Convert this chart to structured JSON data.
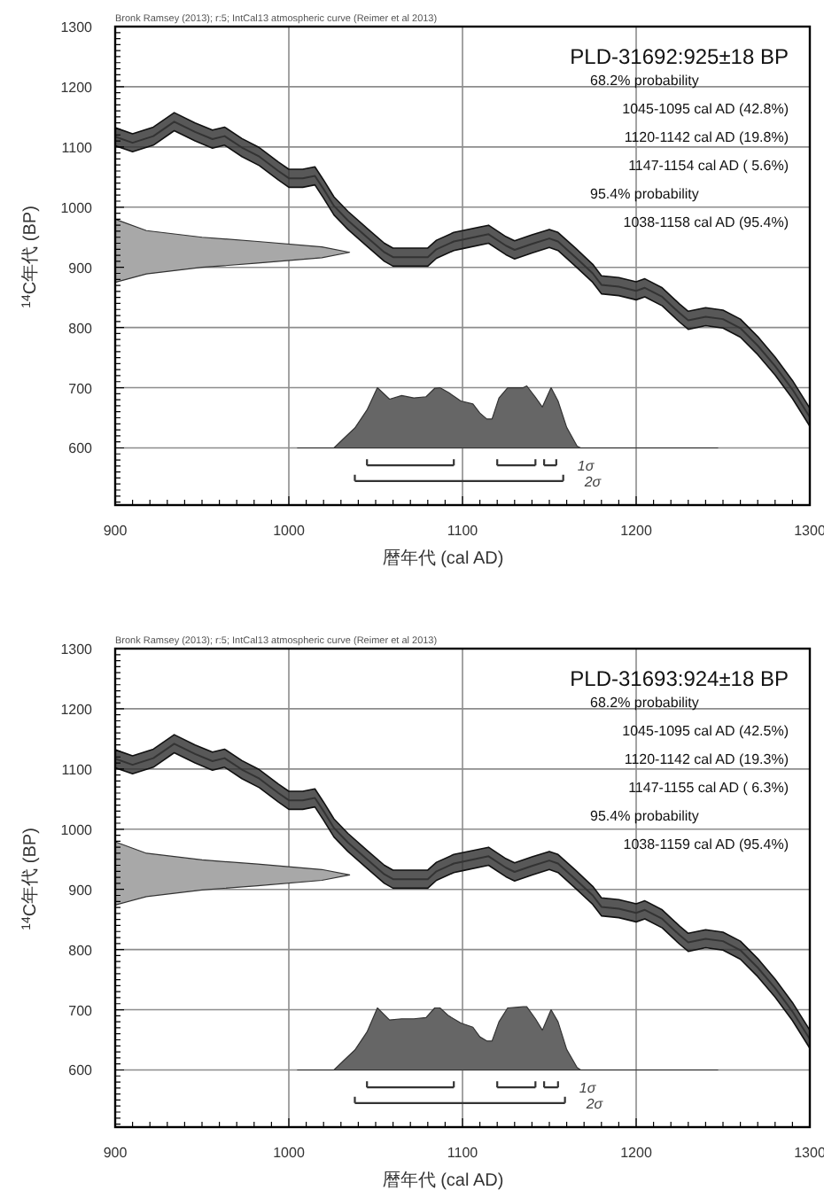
{
  "chart_data": [
    {
      "type": "line",
      "title": "PLD-31692:925±18 BP",
      "subtitle": "Bronk Ramsey (2013); r:5; IntCal13 atmospheric curve (Reimer et al 2013)",
      "xlabel": "暦年代 (cal AD)",
      "ylabel": "$^{14}$C年代 (BP)",
      "annotations": [
        "68.2% probability",
        "1045-1095 cal AD (42.8%)",
        "1120-1142 cal AD (19.8%)",
        "1147-1154 cal AD ( 5.6%)",
        "95.4% probability",
        "1038-1158 cal AD (95.4%)"
      ],
      "xlim": [
        900,
        1300
      ],
      "ylim": [
        505,
        1300
      ],
      "xticks": [
        900,
        {
          "value": 910,
          "label": null
        },
        {
          "value": 920,
          "label": null
        },
        {
          "value": 930,
          "label": null
        },
        {
          "value": 940,
          "label": null
        },
        {
          "value": 950,
          "label": null
        },
        {
          "value": 960,
          "label": null
        },
        {
          "value": 970,
          "label": null
        },
        {
          "value": 980,
          "label": null
        },
        {
          "value": 990,
          "label": null
        },
        1000,
        {
          "value": 1010,
          "label": null
        },
        {
          "value": 1020,
          "label": null
        },
        {
          "value": 1030,
          "label": null
        },
        {
          "value": 1040,
          "label": null
        },
        {
          "value": 1050,
          "label": null
        },
        {
          "value": 1060,
          "label": null
        },
        {
          "value": 1070,
          "label": null
        },
        {
          "value": 1080,
          "label": null
        },
        {
          "value": 1090,
          "label": null
        },
        1100,
        {
          "value": 1110,
          "label": null
        },
        {
          "value": 1120,
          "label": null
        },
        {
          "value": 1130,
          "label": null
        },
        {
          "value": 1140,
          "label": null
        },
        {
          "value": 1150,
          "label": null
        },
        {
          "value": 1160,
          "label": null
        },
        {
          "value": 1170,
          "label": null
        },
        {
          "value": 1180,
          "label": null
        },
        {
          "value": 1190,
          "label": null
        },
        1200,
        {
          "value": 1210,
          "label": null
        },
        {
          "value": 1220,
          "label": null
        },
        {
          "value": 1230,
          "label": null
        },
        {
          "value": 1240,
          "label": null
        },
        {
          "value": 1250,
          "label": null
        },
        {
          "value": 1260,
          "label": null
        },
        {
          "value": 1270,
          "label": null
        },
        {
          "value": 1280,
          "label": null
        },
        {
          "value": 1290,
          "label": null
        },
        1300
      ],
      "yticks": [
        {
          "value": 510,
          "label": null
        },
        {
          "value": 520,
          "label": null
        },
        {
          "value": 530,
          "label": null
        },
        {
          "value": 540,
          "label": null
        },
        {
          "value": 550,
          "label": null
        },
        {
          "value": 560,
          "label": null
        },
        {
          "value": 570,
          "label": null
        },
        {
          "value": 580,
          "label": null
        },
        {
          "value": 590,
          "label": null
        },
        600,
        {
          "value": 610,
          "label": null
        },
        {
          "value": 620,
          "label": null
        },
        {
          "value": 630,
          "label": null
        },
        {
          "value": 640,
          "label": null
        },
        {
          "value": 650,
          "label": null
        },
        {
          "value": 660,
          "label": null
        },
        {
          "value": 670,
          "label": null
        },
        {
          "value": 680,
          "label": null
        },
        {
          "value": 690,
          "label": null
        },
        700,
        {
          "value": 710,
          "label": null
        },
        {
          "value": 720,
          "label": null
        },
        {
          "value": 730,
          "label": null
        },
        {
          "value": 740,
          "label": null
        },
        {
          "value": 750,
          "label": null
        },
        {
          "value": 760,
          "label": null
        },
        {
          "value": 770,
          "label": null
        },
        {
          "value": 780,
          "label": null
        },
        {
          "value": 790,
          "label": null
        },
        800,
        {
          "value": 810,
          "label": null
        },
        {
          "value": 820,
          "label": null
        },
        {
          "value": 830,
          "label": null
        },
        {
          "value": 840,
          "label": null
        },
        {
          "value": 850,
          "label": null
        },
        {
          "value": 860,
          "label": null
        },
        {
          "value": 870,
          "label": null
        },
        {
          "value": 880,
          "label": null
        },
        {
          "value": 890,
          "label": null
        },
        900,
        {
          "value": 910,
          "label": null
        },
        {
          "value": 920,
          "label": null
        },
        {
          "value": 930,
          "label": null
        },
        {
          "value": 940,
          "label": null
        },
        {
          "value": 950,
          "label": null
        },
        {
          "value": 960,
          "label": null
        },
        {
          "value": 970,
          "label": null
        },
        {
          "value": 980,
          "label": null
        },
        {
          "value": 990,
          "label": null
        },
        1000,
        {
          "value": 1010,
          "label": null
        },
        {
          "value": 1020,
          "label": null
        },
        {
          "value": 1030,
          "label": null
        },
        {
          "value": 1040,
          "label": null
        },
        {
          "value": 1050,
          "label": null
        },
        {
          "value": 1060,
          "label": null
        },
        {
          "value": 1070,
          "label": null
        },
        {
          "value": 1080,
          "label": null
        },
        {
          "value": 1090,
          "label": null
        },
        1100,
        {
          "value": 1110,
          "label": null
        },
        {
          "value": 1120,
          "label": null
        },
        {
          "value": 1130,
          "label": null
        },
        {
          "value": 1140,
          "label": null
        },
        {
          "value": 1150,
          "label": null
        },
        {
          "value": 1160,
          "label": null
        },
        {
          "value": 1170,
          "label": null
        },
        {
          "value": 1180,
          "label": null
        },
        {
          "value": 1190,
          "label": null
        },
        1200,
        {
          "value": 1210,
          "label": null
        },
        {
          "value": 1220,
          "label": null
        },
        {
          "value": 1230,
          "label": null
        },
        {
          "value": 1240,
          "label": null
        },
        {
          "value": 1250,
          "label": null
        },
        {
          "value": 1260,
          "label": null
        },
        {
          "value": 1270,
          "label": null
        },
        {
          "value": 1280,
          "label": null
        },
        {
          "value": 1290,
          "label": null
        },
        1300
      ],
      "grid": true,
      "legend": "bottom",
      "series": [
        {
          "type": "line",
          "color": "#333333",
          "x": [
            900,
            910,
            922,
            934,
            946,
            956,
            963,
            973,
            983,
            994,
            1000,
            1008,
            1015,
            1020,
            1026,
            1034,
            1045,
            1055,
            1060,
            1080,
            1085,
            1095,
            1100,
            1115,
            1125,
            1130,
            1140,
            1150,
            1155,
            1165,
            1175,
            1180,
            1190,
            1200,
            1205,
            1215,
            1225,
            1230,
            1240,
            1250,
            1260,
            1270,
            1280,
            1290,
            1300
          ],
          "values": [
            1117,
            1107,
            1118,
            1142,
            1125,
            1113,
            1118,
            1099,
            1084,
            1060,
            1048,
            1048,
            1052,
            1030,
            1002,
            978,
            950,
            925,
            917,
            917,
            930,
            943,
            946,
            955,
            936,
            929,
            939,
            948,
            943,
            917,
            890,
            871,
            868,
            861,
            866,
            851,
            824,
            812,
            818,
            814,
            799,
            770,
            736,
            697,
            651
          ],
          "lower": [
            1102,
            1092,
            1103,
            1127,
            1110,
            1098,
            1103,
            1084,
            1069,
            1045,
            1033,
            1033,
            1037,
            1015,
            987,
            963,
            935,
            910,
            902,
            902,
            915,
            928,
            931,
            940,
            921,
            914,
            924,
            933,
            928,
            902,
            875,
            856,
            853,
            846,
            851,
            836,
            809,
            797,
            803,
            799,
            784,
            755,
            721,
            682,
            636
          ],
          "upper": [
            1132,
            1122,
            1133,
            1157,
            1140,
            1128,
            1133,
            1114,
            1099,
            1075,
            1063,
            1063,
            1067,
            1045,
            1017,
            993,
            965,
            940,
            932,
            932,
            945,
            958,
            961,
            970,
            951,
            944,
            954,
            963,
            958,
            932,
            905,
            886,
            883,
            876,
            881,
            866,
            839,
            827,
            833,
            829,
            814,
            785,
            751,
            712,
            666
          ]
        },
        {
          "type": "area",
          "color": "#a8a8a8",
          "x": [
            900,
            918,
            950,
            982,
            1019,
            1035,
            1019,
            982,
            950,
            918,
            900
          ],
          "values": [
            980,
            961,
            950,
            943,
            934,
            925,
            916,
            907,
            900,
            889,
            875
          ]
        },
        {
          "type": "area",
          "color": "#666666",
          "x": [
            1005,
            1026,
            1031,
            1038,
            1045,
            1051,
            1058,
            1065,
            1072,
            1079,
            1084,
            1087,
            1092,
            1099,
            1106,
            1110,
            1114,
            1117,
            1121,
            1126,
            1135,
            1137,
            1142,
            1146,
            1151,
            1155,
            1160,
            1166,
            1168,
            1247
          ],
          "values": [
            600,
            600,
            614,
            633,
            663,
            700,
            681,
            687,
            683,
            685,
            699,
            700,
            692,
            678,
            673,
            658,
            648,
            648,
            683,
            700,
            700,
            703,
            684,
            668,
            700,
            678,
            634,
            603,
            600,
            600
          ]
        },
        {
          "type": "line",
          "name": "1σ",
          "color": "#333333",
          "x": [
            1045,
            1095,
            null,
            1120,
            1142,
            null,
            1147,
            1154
          ],
          "values": [
            571,
            571,
            null,
            571,
            571,
            null,
            571,
            571
          ]
        },
        {
          "type": "line",
          "name": "2σ",
          "color": "#333333",
          "x": [
            1038,
            1158
          ],
          "values": [
            545,
            545
          ]
        }
      ]
    },
    {
      "type": "line",
      "title": "PLD-31693:924±18 BP",
      "subtitle": "Bronk Ramsey (2013); r:5; IntCal13 atmospheric curve (Reimer et al 2013)",
      "xlabel": "暦年代 (cal AD)",
      "ylabel": "$^{14}$C年代 (BP)",
      "annotations": [
        "68.2% probability",
        "1045-1095 cal AD (42.5%)",
        "1120-1142 cal AD (19.3%)",
        "1147-1155 cal AD ( 6.3%)",
        "95.4% probability",
        "1038-1159 cal AD (95.4%)"
      ],
      "xlim": [
        900,
        1300
      ],
      "ylim": [
        505,
        1300
      ],
      "xticks": [
        900,
        {
          "value": 910,
          "label": null
        },
        {
          "value": 920,
          "label": null
        },
        {
          "value": 930,
          "label": null
        },
        {
          "value": 940,
          "label": null
        },
        {
          "value": 950,
          "label": null
        },
        {
          "value": 960,
          "label": null
        },
        {
          "value": 970,
          "label": null
        },
        {
          "value": 980,
          "label": null
        },
        {
          "value": 990,
          "label": null
        },
        1000,
        {
          "value": 1010,
          "label": null
        },
        {
          "value": 1020,
          "label": null
        },
        {
          "value": 1030,
          "label": null
        },
        {
          "value": 1040,
          "label": null
        },
        {
          "value": 1050,
          "label": null
        },
        {
          "value": 1060,
          "label": null
        },
        {
          "value": 1070,
          "label": null
        },
        {
          "value": 1080,
          "label": null
        },
        {
          "value": 1090,
          "label": null
        },
        1100,
        {
          "value": 1110,
          "label": null
        },
        {
          "value": 1120,
          "label": null
        },
        {
          "value": 1130,
          "label": null
        },
        {
          "value": 1140,
          "label": null
        },
        {
          "value": 1150,
          "label": null
        },
        {
          "value": 1160,
          "label": null
        },
        {
          "value": 1170,
          "label": null
        },
        {
          "value": 1180,
          "label": null
        },
        {
          "value": 1190,
          "label": null
        },
        1200,
        {
          "value": 1210,
          "label": null
        },
        {
          "value": 1220,
          "label": null
        },
        {
          "value": 1230,
          "label": null
        },
        {
          "value": 1240,
          "label": null
        },
        {
          "value": 1250,
          "label": null
        },
        {
          "value": 1260,
          "label": null
        },
        {
          "value": 1270,
          "label": null
        },
        {
          "value": 1280,
          "label": null
        },
        {
          "value": 1290,
          "label": null
        },
        1300
      ],
      "yticks": [
        {
          "value": 510,
          "label": null
        },
        {
          "value": 520,
          "label": null
        },
        {
          "value": 530,
          "label": null
        },
        {
          "value": 540,
          "label": null
        },
        {
          "value": 550,
          "label": null
        },
        {
          "value": 560,
          "label": null
        },
        {
          "value": 570,
          "label": null
        },
        {
          "value": 580,
          "label": null
        },
        {
          "value": 590,
          "label": null
        },
        600,
        {
          "value": 610,
          "label": null
        },
        {
          "value": 620,
          "label": null
        },
        {
          "value": 630,
          "label": null
        },
        {
          "value": 640,
          "label": null
        },
        {
          "value": 650,
          "label": null
        },
        {
          "value": 660,
          "label": null
        },
        {
          "value": 670,
          "label": null
        },
        {
          "value": 680,
          "label": null
        },
        {
          "value": 690,
          "label": null
        },
        700,
        {
          "value": 710,
          "label": null
        },
        {
          "value": 720,
          "label": null
        },
        {
          "value": 730,
          "label": null
        },
        {
          "value": 740,
          "label": null
        },
        {
          "value": 750,
          "label": null
        },
        {
          "value": 760,
          "label": null
        },
        {
          "value": 770,
          "label": null
        },
        {
          "value": 780,
          "label": null
        },
        {
          "value": 790,
          "label": null
        },
        800,
        {
          "value": 810,
          "label": null
        },
        {
          "value": 820,
          "label": null
        },
        {
          "value": 830,
          "label": null
        },
        {
          "value": 840,
          "label": null
        },
        {
          "value": 850,
          "label": null
        },
        {
          "value": 860,
          "label": null
        },
        {
          "value": 870,
          "label": null
        },
        {
          "value": 880,
          "label": null
        },
        {
          "value": 890,
          "label": null
        },
        900,
        {
          "value": 910,
          "label": null
        },
        {
          "value": 920,
          "label": null
        },
        {
          "value": 930,
          "label": null
        },
        {
          "value": 940,
          "label": null
        },
        {
          "value": 950,
          "label": null
        },
        {
          "value": 960,
          "label": null
        },
        {
          "value": 970,
          "label": null
        },
        {
          "value": 980,
          "label": null
        },
        {
          "value": 990,
          "label": null
        },
        1000,
        {
          "value": 1010,
          "label": null
        },
        {
          "value": 1020,
          "label": null
        },
        {
          "value": 1030,
          "label": null
        },
        {
          "value": 1040,
          "label": null
        },
        {
          "value": 1050,
          "label": null
        },
        {
          "value": 1060,
          "label": null
        },
        {
          "value": 1070,
          "label": null
        },
        {
          "value": 1080,
          "label": null
        },
        {
          "value": 1090,
          "label": null
        },
        1100,
        {
          "value": 1110,
          "label": null
        },
        {
          "value": 1120,
          "label": null
        },
        {
          "value": 1130,
          "label": null
        },
        {
          "value": 1140,
          "label": null
        },
        {
          "value": 1150,
          "label": null
        },
        {
          "value": 1160,
          "label": null
        },
        {
          "value": 1170,
          "label": null
        },
        {
          "value": 1180,
          "label": null
        },
        {
          "value": 1190,
          "label": null
        },
        1200,
        {
          "value": 1210,
          "label": null
        },
        {
          "value": 1220,
          "label": null
        },
        {
          "value": 1230,
          "label": null
        },
        {
          "value": 1240,
          "label": null
        },
        {
          "value": 1250,
          "label": null
        },
        {
          "value": 1260,
          "label": null
        },
        {
          "value": 1270,
          "label": null
        },
        {
          "value": 1280,
          "label": null
        },
        {
          "value": 1290,
          "label": null
        },
        1300
      ],
      "grid": true,
      "legend": "bottom",
      "series": [
        {
          "type": "line",
          "color": "#333333",
          "x": [
            900,
            910,
            922,
            934,
            946,
            956,
            963,
            973,
            983,
            994,
            1000,
            1008,
            1015,
            1020,
            1026,
            1034,
            1045,
            1055,
            1060,
            1080,
            1085,
            1095,
            1100,
            1115,
            1125,
            1130,
            1140,
            1150,
            1155,
            1165,
            1175,
            1180,
            1190,
            1200,
            1205,
            1215,
            1225,
            1230,
            1240,
            1250,
            1260,
            1270,
            1280,
            1290,
            1300
          ],
          "values": [
            1117,
            1107,
            1118,
            1142,
            1125,
            1113,
            1118,
            1099,
            1084,
            1060,
            1048,
            1048,
            1052,
            1030,
            1002,
            978,
            950,
            925,
            917,
            917,
            930,
            943,
            946,
            955,
            936,
            929,
            939,
            948,
            943,
            917,
            890,
            871,
            868,
            861,
            866,
            851,
            824,
            812,
            818,
            814,
            799,
            770,
            736,
            697,
            651
          ],
          "lower": [
            1102,
            1092,
            1103,
            1127,
            1110,
            1098,
            1103,
            1084,
            1069,
            1045,
            1033,
            1033,
            1037,
            1015,
            987,
            963,
            935,
            910,
            902,
            902,
            915,
            928,
            931,
            940,
            921,
            914,
            924,
            933,
            928,
            902,
            875,
            856,
            853,
            846,
            851,
            836,
            809,
            797,
            803,
            799,
            784,
            755,
            721,
            682,
            636
          ],
          "upper": [
            1132,
            1122,
            1133,
            1157,
            1140,
            1128,
            1133,
            1114,
            1099,
            1075,
            1063,
            1063,
            1067,
            1045,
            1017,
            993,
            965,
            940,
            932,
            932,
            945,
            958,
            961,
            970,
            951,
            944,
            954,
            963,
            958,
            932,
            905,
            886,
            883,
            876,
            881,
            866,
            839,
            827,
            833,
            829,
            814,
            785,
            751,
            712,
            666
          ]
        },
        {
          "type": "area",
          "color": "#a8a8a8",
          "x": [
            900,
            918,
            950,
            982,
            1019,
            1035,
            1019,
            982,
            950,
            918,
            900
          ],
          "values": [
            979,
            960,
            949,
            942,
            933,
            924,
            915,
            906,
            899,
            888,
            874
          ]
        },
        {
          "type": "area",
          "color": "#666666",
          "x": [
            1005,
            1026,
            1031,
            1038,
            1045,
            1051,
            1058,
            1065,
            1072,
            1079,
            1084,
            1087,
            1092,
            1099,
            1106,
            1110,
            1114,
            1117,
            1121,
            1126,
            1135,
            1137,
            1142,
            1146,
            1151,
            1155,
            1160,
            1166,
            1168,
            1247
          ],
          "values": [
            600,
            600,
            614,
            633,
            663,
            703,
            683,
            685,
            685,
            687,
            703,
            703,
            690,
            678,
            671,
            655,
            648,
            648,
            680,
            703,
            705,
            705,
            685,
            666,
            700,
            680,
            634,
            604,
            600,
            600
          ]
        },
        {
          "type": "line",
          "name": "1σ",
          "color": "#333333",
          "x": [
            1045,
            1095,
            null,
            1120,
            1142,
            null,
            1147,
            1155
          ],
          "values": [
            571,
            571,
            null,
            571,
            571,
            null,
            571,
            571
          ]
        },
        {
          "type": "line",
          "name": "2σ",
          "color": "#333333",
          "x": [
            1038,
            1159
          ],
          "values": [
            545,
            545
          ]
        }
      ]
    }
  ]
}
